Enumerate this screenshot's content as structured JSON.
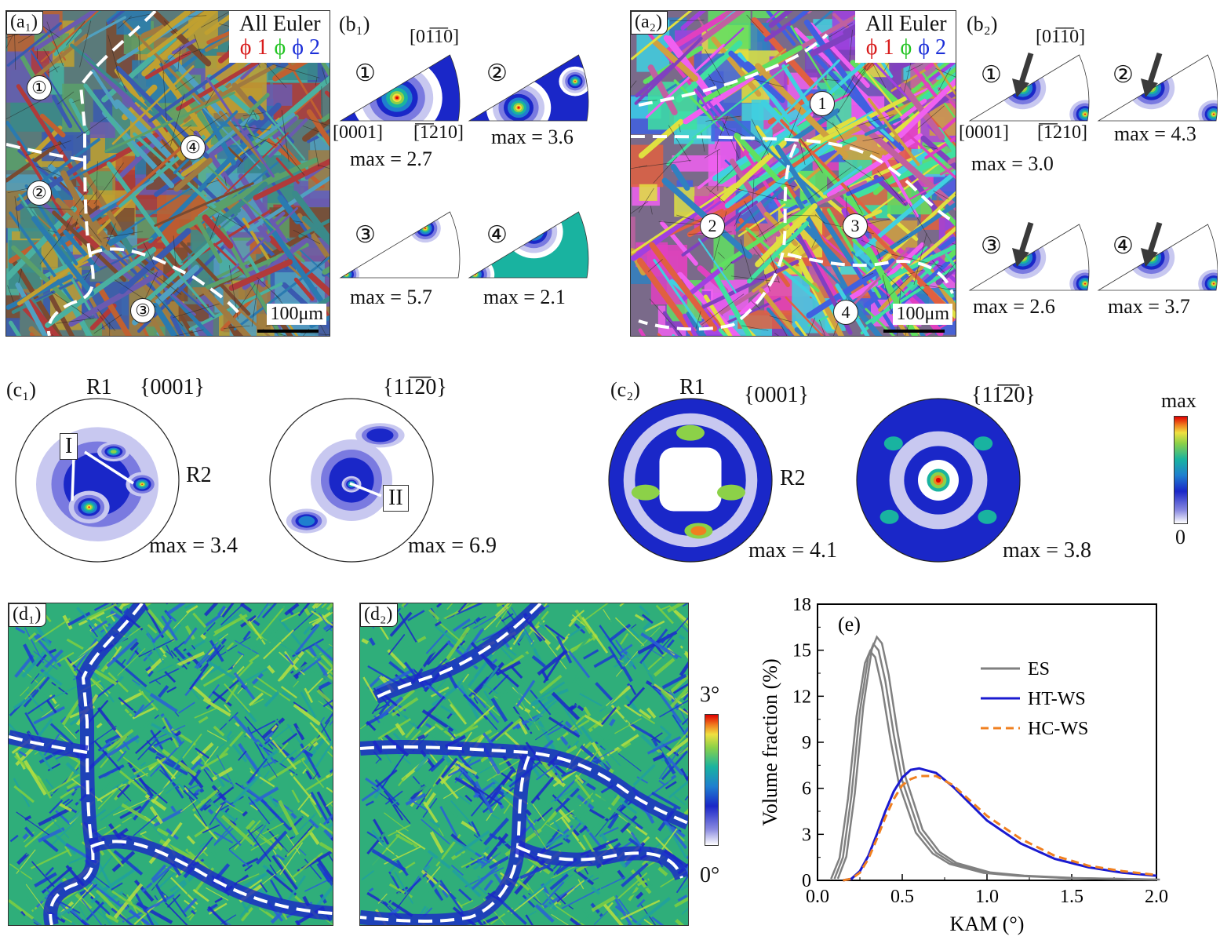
{
  "colors": {
    "phi1": "#d81b1b",
    "phi": "#22c422",
    "phi2": "#1b2ed8",
    "arrow_dark": "#3a3a3a",
    "scale_low": "#ffffff",
    "scale_mid_blue": "#1a27c8",
    "scale_high": "#e00000"
  },
  "a1": {
    "tag": "(a₁)",
    "legend_title": "All Euler",
    "legend_phi1": "ϕ 1",
    "legend_phi": "ϕ",
    "legend_phi2": "ϕ 2",
    "regions": [
      "①",
      "②",
      "③",
      "④"
    ],
    "scale": "100μm"
  },
  "a2": {
    "tag": "(a₂)",
    "legend_title": "All Euler",
    "legend_phi1": "ϕ 1",
    "legend_phi": "ϕ",
    "legend_phi2": "ϕ 2",
    "regions": [
      "1",
      "2",
      "3",
      "4"
    ],
    "scale": "100μm"
  },
  "b1": {
    "tag": "(b₁)",
    "top_dir": "[01̅1̅0]",
    "left_dir": "[0001]",
    "right_dir": "[̅1̅210]",
    "ipfs": [
      {
        "label": "①",
        "max": "max = 2.7"
      },
      {
        "label": "②",
        "max": "max = 3.6"
      },
      {
        "label": "③",
        "max": "max = 5.7"
      },
      {
        "label": "④",
        "max": "max = 2.1"
      }
    ]
  },
  "b2": {
    "tag": "(b₂)",
    "top_dir": "[01̅1̅0]",
    "left_dir": "[0001]",
    "right_dir": "[̅1̅210]",
    "ipfs": [
      {
        "label": "①",
        "max": "max = 3.0"
      },
      {
        "label": "②",
        "max": "max = 4.3"
      },
      {
        "label": "③",
        "max": "max = 2.6"
      },
      {
        "label": "④",
        "max": "max = 3.7"
      }
    ]
  },
  "c1": {
    "tag": "(c₁)",
    "pf1": {
      "r1": "R1",
      "r2": "R2",
      "plane": "{0001}",
      "max": "max = 3.4",
      "marker": "I"
    },
    "pf2": {
      "plane": "{11̅2̅0}",
      "max": "max = 6.9",
      "marker": "II"
    }
  },
  "c2": {
    "tag": "(c₂)",
    "pf1": {
      "r1": "R1",
      "r2": "R2",
      "plane": "{0001}",
      "max": "max = 4.1"
    },
    "pf2": {
      "plane": "{11̅2̅0}",
      "max": "max = 3.8"
    }
  },
  "pf_scale": {
    "top": "max",
    "bottom": "0"
  },
  "d1": {
    "tag": "(d₁)"
  },
  "d2": {
    "tag": "(d₂)"
  },
  "kam_scale": {
    "top": "3°",
    "bottom": "0°"
  },
  "chart_data": {
    "type": "line",
    "panel": "(e)",
    "xlabel": "KAM (°)",
    "ylabel": "Volume fraction (%)",
    "xlim": [
      0,
      2.0
    ],
    "ylim": [
      0,
      18
    ],
    "xticks": [
      "0.0",
      "0.5",
      "1.0",
      "1.5",
      "2.0"
    ],
    "yticks": [
      "0",
      "3",
      "6",
      "9",
      "12",
      "15",
      "18"
    ],
    "legend": "top-right",
    "series": [
      {
        "name": "ES",
        "color": "#808080",
        "dash": false,
        "x": [
          0.1,
          0.15,
          0.2,
          0.25,
          0.3,
          0.33,
          0.36,
          0.4,
          0.45,
          0.5,
          0.6,
          0.7,
          0.8,
          1.0,
          1.2,
          1.5,
          2.0
        ],
        "y": [
          0.1,
          1.5,
          5.5,
          11.0,
          14.6,
          15.4,
          15.0,
          13.0,
          9.5,
          6.5,
          3.2,
          1.8,
          1.1,
          0.5,
          0.3,
          0.15,
          0.05
        ]
      },
      {
        "name": "HT-WS",
        "color": "#1a1ad0",
        "dash": false,
        "x": [
          0.15,
          0.2,
          0.25,
          0.3,
          0.35,
          0.4,
          0.45,
          0.5,
          0.55,
          0.6,
          0.7,
          0.8,
          0.9,
          1.0,
          1.2,
          1.4,
          1.6,
          1.8,
          2.0
        ],
        "y": [
          0.0,
          0.1,
          0.6,
          1.6,
          3.0,
          4.5,
          5.8,
          6.7,
          7.2,
          7.3,
          7.0,
          6.1,
          5.0,
          3.9,
          2.4,
          1.4,
          0.85,
          0.5,
          0.3
        ]
      },
      {
        "name": "HC-WS",
        "color": "#f08020",
        "dash": true,
        "x": [
          0.15,
          0.2,
          0.25,
          0.3,
          0.35,
          0.4,
          0.45,
          0.5,
          0.55,
          0.6,
          0.7,
          0.8,
          0.9,
          1.0,
          1.2,
          1.4,
          1.6,
          1.8,
          2.0
        ],
        "y": [
          0.0,
          0.1,
          0.5,
          1.4,
          2.7,
          4.1,
          5.3,
          6.2,
          6.6,
          6.8,
          6.8,
          6.2,
          5.2,
          4.2,
          2.7,
          1.6,
          0.95,
          0.6,
          0.35
        ]
      }
    ]
  }
}
